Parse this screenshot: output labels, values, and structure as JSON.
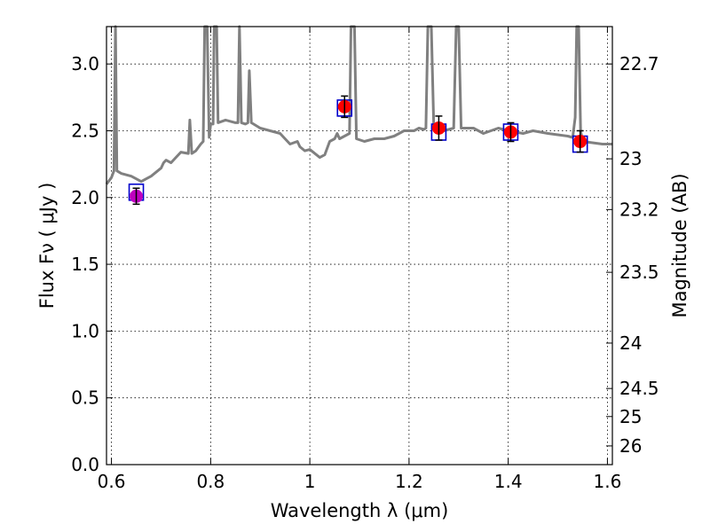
{
  "chart_data": {
    "type": "scatter",
    "xlabel": "Wavelength  λ (μm)",
    "ylabel": "Flux  Fν  ( μJy )",
    "y2label": "Magnitude (AB)",
    "xlim": [
      0.59,
      1.61
    ],
    "ylim": [
      0.0,
      3.28
    ],
    "grid": true,
    "x_ticks": [
      {
        "value": 0.6,
        "label": "0.6"
      },
      {
        "value": 0.8,
        "label": "0.8"
      },
      {
        "value": 1.0,
        "label": "1"
      },
      {
        "value": 1.2,
        "label": "1.2"
      },
      {
        "value": 1.4,
        "label": "1.4"
      },
      {
        "value": 1.6,
        "label": "1.6"
      }
    ],
    "y_ticks": [
      {
        "value": 0.0,
        "label": "0.0"
      },
      {
        "value": 0.5,
        "label": "0.5"
      },
      {
        "value": 1.0,
        "label": "1.0"
      },
      {
        "value": 1.5,
        "label": "1.5"
      },
      {
        "value": 2.0,
        "label": "2.0"
      },
      {
        "value": 2.5,
        "label": "2.5"
      },
      {
        "value": 3.0,
        "label": "3.0"
      }
    ],
    "y2_ticks": [
      {
        "flux": 3.0,
        "label": "22.7"
      },
      {
        "flux": 2.29,
        "label": "23"
      },
      {
        "flux": 1.91,
        "label": "23.2"
      },
      {
        "flux": 1.44,
        "label": "23.5"
      },
      {
        "flux": 0.91,
        "label": "24"
      },
      {
        "flux": 0.57,
        "label": "24.5"
      },
      {
        "flux": 0.36,
        "label": "25"
      },
      {
        "flux": 0.14,
        "label": "26"
      }
    ],
    "model_spectrum": {
      "color": "#808080",
      "points": [
        [
          0.59,
          2.1
        ],
        [
          0.6,
          2.15
        ],
        [
          0.605,
          2.2
        ],
        [
          0.608,
          3.28
        ],
        [
          0.611,
          2.2
        ],
        [
          0.62,
          2.18
        ],
        [
          0.64,
          2.16
        ],
        [
          0.66,
          2.12
        ],
        [
          0.68,
          2.16
        ],
        [
          0.7,
          2.22
        ],
        [
          0.705,
          2.26
        ],
        [
          0.71,
          2.28
        ],
        [
          0.72,
          2.26
        ],
        [
          0.73,
          2.3
        ],
        [
          0.74,
          2.34
        ],
        [
          0.755,
          2.33
        ],
        [
          0.758,
          2.58
        ],
        [
          0.762,
          2.33
        ],
        [
          0.77,
          2.35
        ],
        [
          0.78,
          2.4
        ],
        [
          0.785,
          2.42
        ],
        [
          0.788,
          3.28
        ],
        [
          0.793,
          3.28
        ],
        [
          0.797,
          2.45
        ],
        [
          0.8,
          2.55
        ],
        [
          0.805,
          2.55
        ],
        [
          0.807,
          3.28
        ],
        [
          0.812,
          3.28
        ],
        [
          0.815,
          2.56
        ],
        [
          0.83,
          2.58
        ],
        [
          0.85,
          2.56
        ],
        [
          0.855,
          2.56
        ],
        [
          0.858,
          3.28
        ],
        [
          0.862,
          2.56
        ],
        [
          0.87,
          2.55
        ],
        [
          0.875,
          2.56
        ],
        [
          0.878,
          2.95
        ],
        [
          0.882,
          2.56
        ],
        [
          0.9,
          2.52
        ],
        [
          0.92,
          2.5
        ],
        [
          0.94,
          2.48
        ],
        [
          0.95,
          2.44
        ],
        [
          0.96,
          2.4
        ],
        [
          0.975,
          2.42
        ],
        [
          0.98,
          2.38
        ],
        [
          0.99,
          2.35
        ],
        [
          1.0,
          2.36
        ],
        [
          1.02,
          2.3
        ],
        [
          1.03,
          2.32
        ],
        [
          1.04,
          2.42
        ],
        [
          1.05,
          2.44
        ],
        [
          1.055,
          2.48
        ],
        [
          1.06,
          2.44
        ],
        [
          1.07,
          2.46
        ],
        [
          1.08,
          2.48
        ],
        [
          1.083,
          3.28
        ],
        [
          1.09,
          3.28
        ],
        [
          1.094,
          2.44
        ],
        [
          1.11,
          2.42
        ],
        [
          1.13,
          2.44
        ],
        [
          1.15,
          2.44
        ],
        [
          1.17,
          2.46
        ],
        [
          1.19,
          2.5
        ],
        [
          1.21,
          2.5
        ],
        [
          1.22,
          2.52
        ],
        [
          1.23,
          2.51
        ],
        [
          1.234,
          2.52
        ],
        [
          1.238,
          3.28
        ],
        [
          1.245,
          3.28
        ],
        [
          1.25,
          2.52
        ],
        [
          1.27,
          2.5
        ],
        [
          1.29,
          2.52
        ],
        [
          1.295,
          3.28
        ],
        [
          1.3,
          3.28
        ],
        [
          1.305,
          2.52
        ],
        [
          1.33,
          2.52
        ],
        [
          1.35,
          2.48
        ],
        [
          1.38,
          2.52
        ],
        [
          1.4,
          2.5
        ],
        [
          1.43,
          2.48
        ],
        [
          1.45,
          2.5
        ],
        [
          1.48,
          2.48
        ],
        [
          1.5,
          2.47
        ],
        [
          1.52,
          2.46
        ],
        [
          1.53,
          2.45
        ],
        [
          1.535,
          2.6
        ],
        [
          1.538,
          3.28
        ],
        [
          1.542,
          3.28
        ],
        [
          1.546,
          2.5
        ],
        [
          1.55,
          2.42
        ],
        [
          1.57,
          2.41
        ],
        [
          1.59,
          2.4
        ],
        [
          1.61,
          2.4
        ]
      ]
    },
    "series": [
      {
        "marker": "circle",
        "points": [
          {
            "x": 0.65,
            "y": 2.01,
            "err": 0.06,
            "color": "#bf00bf"
          },
          {
            "x": 1.07,
            "y": 2.68,
            "err": 0.08,
            "color": "#ff0000"
          },
          {
            "x": 1.26,
            "y": 2.52,
            "err": 0.09,
            "color": "#ff0000"
          },
          {
            "x": 1.405,
            "y": 2.49,
            "err": 0.07,
            "color": "#ff0000"
          },
          {
            "x": 1.545,
            "y": 2.42,
            "err": 0.08,
            "color": "#ff0000"
          }
        ]
      },
      {
        "marker": "square-open",
        "color": "#0000cc",
        "points": [
          {
            "x": 0.65,
            "y": 2.04
          },
          {
            "x": 1.07,
            "y": 2.67
          },
          {
            "x": 1.26,
            "y": 2.49
          },
          {
            "x": 1.405,
            "y": 2.49
          },
          {
            "x": 1.545,
            "y": 2.4
          }
        ]
      }
    ]
  }
}
